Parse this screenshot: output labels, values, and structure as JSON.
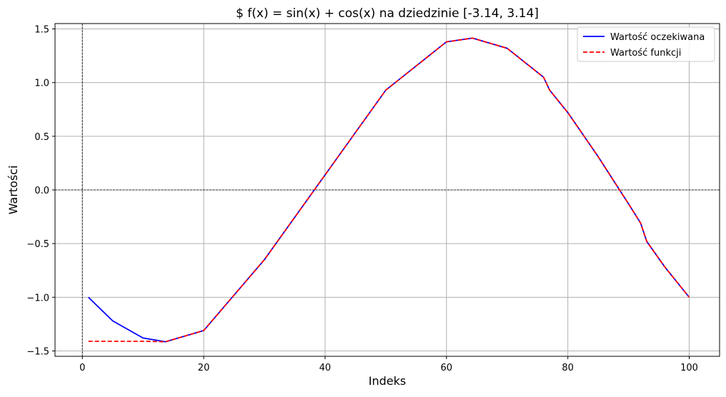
{
  "chart_data": {
    "type": "line",
    "title": "$ f(x) = sin(x) + cos(x) na dziedzinie [-3.14, 3.14]",
    "xlabel": "Indeks",
    "ylabel": "Wartości",
    "xlim": [
      -4.5,
      105
    ],
    "ylim": [
      -1.55,
      1.55
    ],
    "x_ticks": [
      0,
      20,
      40,
      60,
      80,
      100
    ],
    "x_tick_labels": [
      "0",
      "20",
      "40",
      "60",
      "80",
      "100"
    ],
    "y_ticks": [
      -1.5,
      -1.0,
      -0.5,
      0.0,
      0.5,
      1.0,
      1.5
    ],
    "y_tick_labels": [
      "−1.5",
      "−1.0",
      "−0.5",
      "0.0",
      "0.5",
      "1.0",
      "1.5"
    ],
    "grid": true,
    "reference_lines": {
      "y": 0,
      "x": 0
    },
    "legend_position": "top-right",
    "series": [
      {
        "name": "Wartość oczekiwana",
        "color": "#0000ff",
        "linestyle": "solid",
        "x": [
          1,
          5,
          10,
          13.7,
          20,
          30,
          40,
          50,
          60,
          64.3,
          70,
          76,
          77,
          80,
          85,
          90,
          92,
          93,
          96,
          100
        ],
        "y": [
          -1.0,
          -1.22,
          -1.38,
          -1.414,
          -1.31,
          -0.65,
          0.14,
          0.93,
          1.38,
          1.414,
          1.32,
          1.05,
          0.93,
          0.72,
          0.31,
          -0.13,
          -0.31,
          -0.48,
          -0.72,
          -1.0
        ]
      },
      {
        "name": "Wartość funkcji",
        "color": "#ff0000",
        "linestyle": "dashed",
        "x": [
          1,
          5,
          10,
          13.7,
          20,
          30,
          40,
          50,
          60,
          64.3,
          70,
          76,
          77,
          80,
          85,
          90,
          92,
          93,
          96,
          100
        ],
        "y": [
          -1.41,
          -1.41,
          -1.41,
          -1.414,
          -1.31,
          -0.65,
          0.14,
          0.93,
          1.38,
          1.414,
          1.32,
          1.05,
          0.93,
          0.72,
          0.31,
          -0.13,
          -0.31,
          -0.48,
          -0.72,
          -1.0
        ]
      }
    ]
  }
}
